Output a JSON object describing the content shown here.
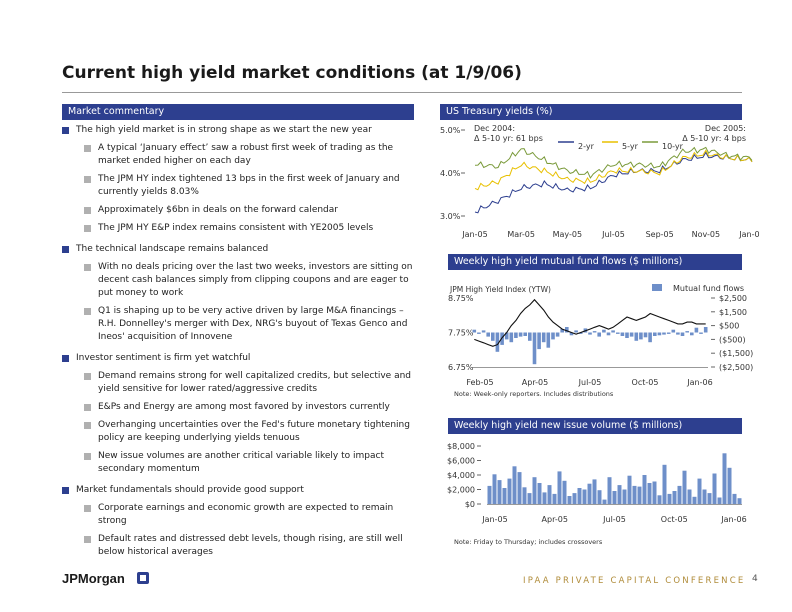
{
  "title": "Current high yield market conditions (at 1/9/06)",
  "left_header": "Market commentary",
  "commentary": [
    {
      "text": "The high yield market is in strong shape as we start the new year",
      "subs": [
        "A typical ‘January effect’ saw a robust first week of trading as the market ended higher on each day",
        "The JPM HY index tightened 13 bps in the first week of January and currently yields 8.03%",
        "Approximately $6bn in deals on the forward calendar",
        "The JPM HY E&P index remains consistent with YE2005 levels"
      ]
    },
    {
      "text": "The technical landscape remains balanced",
      "subs": [
        "With no deals pricing over the last two weeks, investors are sitting on decent cash balances simply from clipping coupons and are eager to put money to work",
        "Q1 is shaping up to be very active driven by large M&A financings – R.H. Donnelley's merger with Dex, NRG's buyout of Texas Genco and Ineos' acquisition of Innovene"
      ]
    },
    {
      "text": "Investor sentiment is firm yet watchful",
      "subs": [
        "Demand remains strong for well capitalized credits, but selective and yield sensitive for lower rated/aggressive credits",
        "E&Ps and Energy are among most favored by investors currently",
        "Overhanging uncertainties over the Fed's future monetary tightening policy are keeping underlying yields tenuous",
        "New issue volumes are another critical variable likely to impact secondary momentum"
      ]
    },
    {
      "text": "Market fundamentals should provide good support",
      "subs": [
        "Corporate earnings and economic growth are expected to remain strong",
        "Default rates and distressed debt levels, though rising, are still well below historical averages"
      ]
    }
  ],
  "chart_data": [
    {
      "type": "line",
      "header": "US Treasury yields (%)",
      "x_ticks": [
        "Jan-05",
        "Mar-05",
        "May-05",
        "Jul-05",
        "Sep-05",
        "Nov-05",
        "Jan-06"
      ],
      "y_ticks": [
        "5.0%",
        "4.0%",
        "3.0%"
      ],
      "ylim": [
        3.0,
        5.0
      ],
      "annotation_left": [
        "Dec 2004:",
        "Δ 5-10 yr: 61 bps"
      ],
      "annotation_right": [
        "Dec 2005:",
        "Δ 5-10 yr: 4 bps"
      ],
      "series": [
        {
          "name": "2-yr",
          "color": "#2d3f8f",
          "x": [
            "Jan-05",
            "Feb-05",
            "Mar-05",
            "Apr-05",
            "May-05",
            "Jun-05",
            "Jul-05",
            "Aug-05",
            "Sep-05",
            "Oct-05",
            "Nov-05",
            "Dec-05",
            "Jan-06"
          ],
          "values": [
            3.1,
            3.35,
            3.65,
            3.75,
            3.6,
            3.65,
            3.95,
            4.05,
            4.05,
            4.3,
            4.4,
            4.35,
            4.3
          ]
        },
        {
          "name": "5-yr",
          "color": "#e8c000",
          "x": [
            "Jan-05",
            "Feb-05",
            "Mar-05",
            "Apr-05",
            "May-05",
            "Jun-05",
            "Jul-05",
            "Aug-05",
            "Sep-05",
            "Oct-05",
            "Nov-05",
            "Dec-05",
            "Jan-06"
          ],
          "values": [
            3.65,
            3.8,
            4.2,
            4.05,
            3.85,
            3.8,
            4.05,
            4.05,
            4.0,
            4.35,
            4.45,
            4.35,
            4.3
          ]
        },
        {
          "name": "10-yr",
          "color": "#7a9a3a",
          "x": [
            "Jan-05",
            "Feb-05",
            "Mar-05",
            "Apr-05",
            "May-05",
            "Jun-05",
            "Jul-05",
            "Aug-05",
            "Sep-05",
            "Oct-05",
            "Nov-05",
            "Dec-05",
            "Jan-06"
          ],
          "values": [
            4.2,
            4.15,
            4.55,
            4.3,
            4.05,
            3.95,
            4.2,
            4.2,
            4.15,
            4.5,
            4.55,
            4.4,
            4.35
          ]
        }
      ]
    },
    {
      "type": "bar+line",
      "header": "Weekly high yield mutual fund flows ($ millions)",
      "line_label": "JPM High Yield Index (YTW)",
      "bar_label": "Mutual fund flows",
      "x_ticks": [
        "Feb-05",
        "Apr-05",
        "Jul-05",
        "Oct-05",
        "Jan-06"
      ],
      "y_left_ticks": [
        "8.75%",
        "7.75%",
        "6.75%"
      ],
      "y_left_lim": [
        6.75,
        8.75
      ],
      "y_right_ticks": [
        "$2,500",
        "$1,500",
        "$500",
        "($500)",
        "($1,500)",
        "($2,500)"
      ],
      "y_right_lim": [
        -2500,
        2500
      ],
      "note": "Note: Week-only reporters. Includes distributions",
      "flows": [
        200,
        -100,
        150,
        -300,
        -600,
        -1400,
        -900,
        -500,
        -700,
        -400,
        -300,
        -250,
        -600,
        -2300,
        -1200,
        -700,
        -1100,
        -500,
        -300,
        250,
        400,
        -200,
        150,
        -100,
        300,
        -150,
        100,
        -300,
        200,
        -200,
        150,
        -100,
        -250,
        -400,
        -300,
        -600,
        -500,
        -350,
        -700,
        -250,
        -200,
        -150,
        -100,
        200,
        -150,
        -250,
        100,
        -200,
        350,
        -100,
        400
      ],
      "ytw": [
        7.55,
        7.5,
        7.45,
        7.4,
        7.35,
        7.4,
        7.6,
        7.75,
        7.95,
        8.1,
        8.3,
        8.45,
        8.55,
        8.7,
        8.55,
        8.4,
        8.2,
        8.05,
        7.95,
        7.85,
        7.8,
        7.75,
        7.7,
        7.75,
        7.8,
        7.85,
        7.9,
        7.95,
        7.9,
        7.85,
        7.9,
        8.0,
        8.1,
        8.2,
        8.15,
        8.1,
        8.15,
        8.2,
        8.3,
        8.25,
        8.2,
        8.15,
        8.1,
        8.05,
        8.0,
        8.0,
        8.05,
        8.05,
        8.0,
        8.0,
        8.0
      ]
    },
    {
      "type": "bar",
      "header": "Weekly high yield new issue volume ($ millions)",
      "x_ticks": [
        "Jan-05",
        "Apr-05",
        "Jul-05",
        "Oct-05",
        "Jan-06"
      ],
      "y_ticks": [
        "$8,000",
        "$6,000",
        "$4,000",
        "$2,000",
        "$0"
      ],
      "ylim": [
        0,
        8000
      ],
      "note": "Note: Friday to Thursday; includes crossovers",
      "values": [
        2500,
        4100,
        3300,
        2200,
        3500,
        5200,
        4400,
        2300,
        1500,
        3700,
        2900,
        1600,
        2600,
        1400,
        4500,
        3200,
        1100,
        1500,
        2200,
        2000,
        2800,
        3400,
        1900,
        600,
        3700,
        1800,
        2600,
        2000,
        3900,
        2500,
        2400,
        4000,
        2900,
        3100,
        1200,
        5400,
        1400,
        1800,
        2500,
        4600,
        2000,
        1000,
        3500,
        2000,
        1500,
        4200,
        900,
        7000,
        5000,
        1400,
        800
      ]
    }
  ],
  "footer": {
    "logo": "JPMorgan",
    "conference": "IPAA PRIVATE CAPITAL CONFERENCE",
    "page": "4"
  }
}
